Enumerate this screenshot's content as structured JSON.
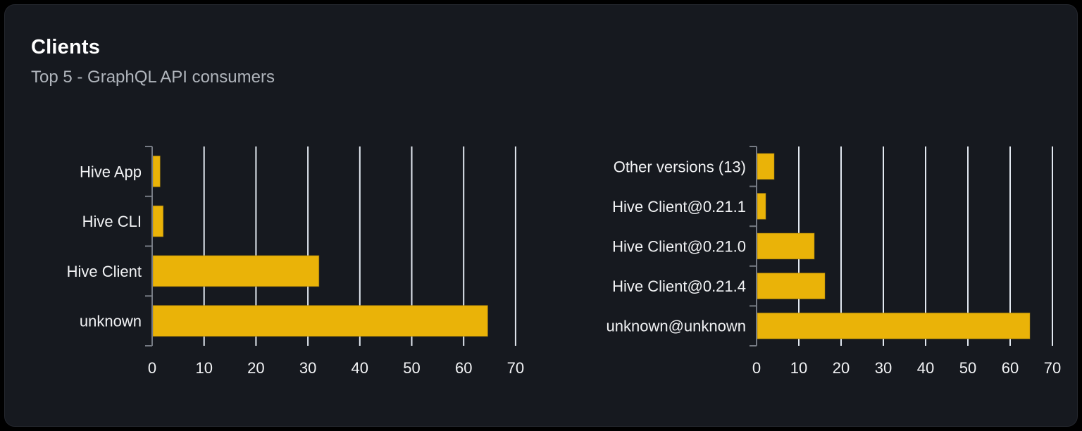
{
  "card": {
    "title": "Clients",
    "subtitle": "Top 5 - GraphQL API consumers"
  },
  "colors": {
    "page_bg": "#000000",
    "card_bg": "#16191f",
    "card_border": "#24272e",
    "title": "#ffffff",
    "subtitle": "#b0b5bc",
    "text": "#f2f3f5",
    "axis": "#767b84",
    "grid": "#e2e8f0",
    "bar": "#eab308"
  },
  "chart_data": [
    {
      "type": "bar",
      "orientation": "horizontal",
      "title": "",
      "categories": [
        "Hive App",
        "Hive CLI",
        "Hive Client",
        "unknown"
      ],
      "values": [
        1.4,
        2,
        32,
        64.5
      ],
      "xlim": [
        0,
        73
      ],
      "xticks": [
        0,
        10,
        20,
        30,
        40,
        50,
        60,
        70
      ],
      "grid": true,
      "legend": false,
      "bar_color": "#eab308"
    },
    {
      "type": "bar",
      "orientation": "horizontal",
      "title": "",
      "categories": [
        "Other versions (13)",
        "Hive Client@0.21.1",
        "Hive Client@0.21.0",
        "Hive Client@0.21.4",
        "unknown@unknown"
      ],
      "values": [
        4,
        2,
        13.5,
        16,
        64.5
      ],
      "xlim": [
        0,
        73
      ],
      "xticks": [
        0,
        10,
        20,
        30,
        40,
        50,
        60,
        70
      ],
      "grid": true,
      "legend": false,
      "bar_color": "#eab308"
    }
  ]
}
